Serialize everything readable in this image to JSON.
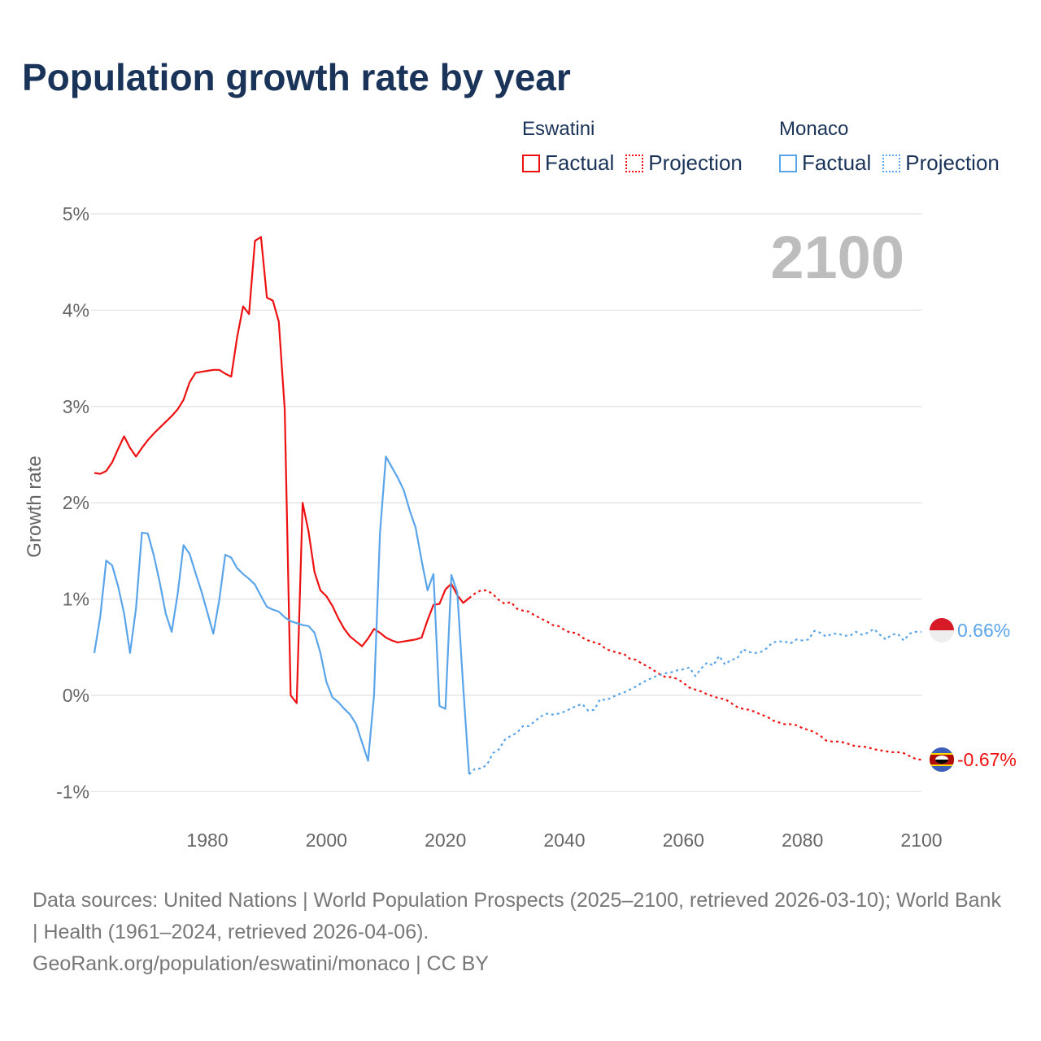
{
  "title": "Population growth rate by year",
  "legend": [
    {
      "country": "Eswatini",
      "color": "#ee1111",
      "factual_label": "Factual",
      "projection_label": "Projection"
    },
    {
      "country": "Monaco",
      "color": "#5aa5ea",
      "factual_label": "Factual",
      "projection_label": "Projection"
    }
  ],
  "year_display": "2100",
  "end_labels": {
    "eswatini": "-0.67%",
    "monaco": "0.66%"
  },
  "footer": {
    "sources": "Data sources: United Nations | World Population Prospects (2025–2100, retrieved 2026-03-10); World Bank | Health (1961–2024, retrieved 2026-04-06).",
    "attribution": "GeoRank.org/population/eswatini/monaco | CC BY"
  },
  "chart_data": {
    "type": "line",
    "title": "Population growth rate by year",
    "xlabel": "",
    "ylabel": "Growth rate",
    "xlim": [
      1961,
      2100
    ],
    "ylim": [
      -1,
      5
    ],
    "x_ticks": [
      1980,
      2000,
      2020,
      2040,
      2060,
      2080,
      2100
    ],
    "y_ticks": [
      -1,
      0,
      1,
      2,
      3,
      4,
      5
    ],
    "y_tick_labels": [
      "-1%",
      "0%",
      "1%",
      "2%",
      "3%",
      "4%",
      "5%"
    ],
    "grid": true,
    "legend_position": "top-right",
    "series": [
      {
        "name": "Eswatini Factual",
        "style": "solid",
        "color": "#ee1111",
        "start_year": 1961,
        "values": [
          2.31,
          2.3,
          2.33,
          2.42,
          2.56,
          2.69,
          2.57,
          2.48,
          2.57,
          2.65,
          2.72,
          2.78,
          2.84,
          2.9,
          2.97,
          3.07,
          3.25,
          3.35,
          3.36,
          3.37,
          3.38,
          3.38,
          3.34,
          3.31,
          3.72,
          4.04,
          3.96,
          4.72,
          4.76,
          4.13,
          4.1,
          3.88,
          2.97,
          0.0,
          -0.08,
          2.0,
          1.7,
          1.28,
          1.09,
          1.03,
          0.93,
          0.8,
          0.69,
          0.61,
          0.56,
          0.51,
          0.59,
          0.69,
          0.65,
          0.6,
          0.57,
          0.55,
          0.56,
          0.57,
          0.58,
          0.6,
          0.78,
          0.94,
          0.95,
          1.1,
          1.16,
          1.04,
          0.96,
          1.01
        ]
      },
      {
        "name": "Eswatini Projection",
        "style": "dotted",
        "color": "#ee1111",
        "start_year": 2024,
        "values": [
          1.01,
          1.06,
          1.09,
          1.09,
          1.05,
          0.99,
          0.95,
          0.97,
          0.9,
          0.88,
          0.87,
          0.83,
          0.8,
          0.77,
          0.73,
          0.72,
          0.68,
          0.65,
          0.65,
          0.6,
          0.57,
          0.55,
          0.53,
          0.48,
          0.46,
          0.44,
          0.43,
          0.38,
          0.37,
          0.33,
          0.3,
          0.26,
          0.22,
          0.19,
          0.19,
          0.17,
          0.13,
          0.08,
          0.06,
          0.04,
          0.01,
          -0.01,
          -0.03,
          -0.04,
          -0.08,
          -0.12,
          -0.14,
          -0.15,
          -0.17,
          -0.2,
          -0.22,
          -0.26,
          -0.28,
          -0.3,
          -0.3,
          -0.31,
          -0.34,
          -0.36,
          -0.38,
          -0.42,
          -0.47,
          -0.48,
          -0.48,
          -0.49,
          -0.51,
          -0.53,
          -0.53,
          -0.54,
          -0.56,
          -0.57,
          -0.58,
          -0.59,
          -0.59,
          -0.6,
          -0.63,
          -0.66,
          -0.67
        ]
      },
      {
        "name": "Monaco Factual",
        "style": "solid",
        "color": "#5aa5ea",
        "start_year": 1961,
        "values": [
          0.44,
          0.82,
          1.4,
          1.35,
          1.13,
          0.85,
          0.44,
          0.9,
          1.69,
          1.68,
          1.45,
          1.17,
          0.85,
          0.66,
          1.05,
          1.56,
          1.47,
          1.27,
          1.08,
          0.86,
          0.64,
          0.99,
          1.46,
          1.43,
          1.32,
          1.26,
          1.21,
          1.15,
          1.03,
          0.92,
          0.89,
          0.87,
          0.81,
          0.77,
          0.75,
          0.73,
          0.72,
          0.65,
          0.44,
          0.14,
          -0.02,
          -0.07,
          -0.14,
          -0.2,
          -0.3,
          -0.49,
          -0.68,
          0.0,
          1.68,
          2.48,
          2.37,
          2.26,
          2.13,
          1.92,
          1.74,
          1.4,
          1.09,
          1.26,
          -0.11,
          -0.14,
          1.25,
          1.07,
          0.08,
          -0.82
        ]
      },
      {
        "name": "Monaco Projection",
        "style": "dotted",
        "color": "#5aa5ea",
        "start_year": 2024,
        "values": [
          -0.82,
          -0.76,
          -0.76,
          -0.72,
          -0.6,
          -0.56,
          -0.46,
          -0.42,
          -0.39,
          -0.32,
          -0.32,
          -0.27,
          -0.22,
          -0.19,
          -0.2,
          -0.19,
          -0.17,
          -0.14,
          -0.11,
          -0.09,
          -0.16,
          -0.15,
          -0.04,
          -0.05,
          -0.02,
          0.01,
          0.03,
          0.06,
          0.09,
          0.13,
          0.16,
          0.19,
          0.21,
          0.23,
          0.24,
          0.26,
          0.27,
          0.29,
          0.2,
          0.28,
          0.34,
          0.31,
          0.41,
          0.32,
          0.37,
          0.38,
          0.48,
          0.45,
          0.44,
          0.45,
          0.49,
          0.55,
          0.56,
          0.56,
          0.54,
          0.58,
          0.57,
          0.58,
          0.67,
          0.65,
          0.61,
          0.64,
          0.64,
          0.62,
          0.62,
          0.66,
          0.63,
          0.65,
          0.69,
          0.63,
          0.58,
          0.63,
          0.64,
          0.57,
          0.64,
          0.66,
          0.66
        ]
      }
    ]
  }
}
